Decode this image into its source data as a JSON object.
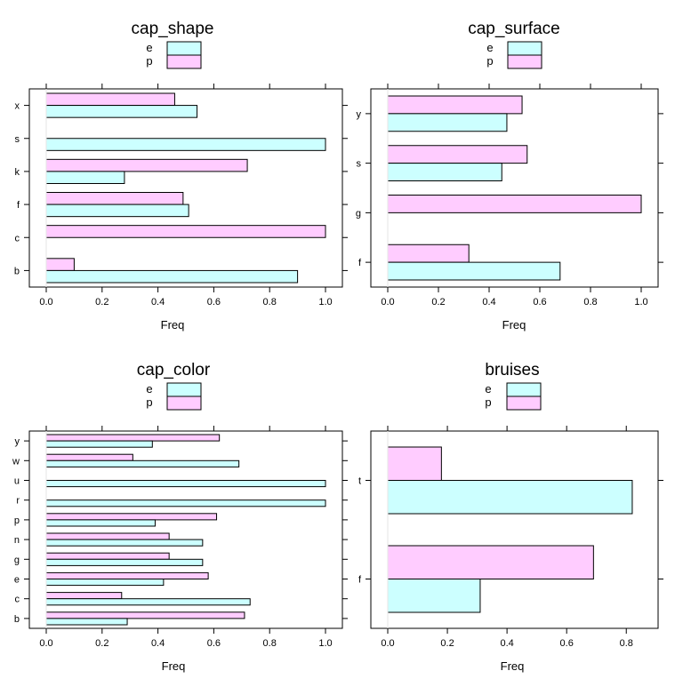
{
  "colors": {
    "e": "#ccffff",
    "p": "#ffccff",
    "stroke": "#000000"
  },
  "legend": {
    "entries": [
      "e",
      "p"
    ]
  },
  "chart_data": [
    {
      "type": "bar",
      "orientation": "horizontal",
      "title": "cap_shape",
      "xlabel": "Freq",
      "xlim": [
        0,
        1.0
      ],
      "xticks": [
        "0.0",
        "0.2",
        "0.4",
        "0.6",
        "0.8",
        "1.0"
      ],
      "categories": [
        "b",
        "c",
        "f",
        "k",
        "s",
        "x"
      ],
      "series": [
        {
          "name": "e",
          "values": [
            0.9,
            0.0,
            0.51,
            0.28,
            1.0,
            0.54
          ]
        },
        {
          "name": "p",
          "values": [
            0.1,
            1.0,
            0.49,
            0.72,
            0.0,
            0.46
          ]
        }
      ]
    },
    {
      "type": "bar",
      "orientation": "horizontal",
      "title": "cap_surface",
      "xlabel": "Freq",
      "xlim": [
        0,
        1.0
      ],
      "xticks": [
        "0.0",
        "0.2",
        "0.4",
        "0.6",
        "0.8",
        "1.0"
      ],
      "categories": [
        "f",
        "g",
        "s",
        "y"
      ],
      "series": [
        {
          "name": "e",
          "values": [
            0.68,
            0.0,
            0.45,
            0.47
          ]
        },
        {
          "name": "p",
          "values": [
            0.32,
            1.0,
            0.55,
            0.53
          ]
        }
      ]
    },
    {
      "type": "bar",
      "orientation": "horizontal",
      "title": "cap_color",
      "xlabel": "Freq",
      "xlim": [
        0,
        1.0
      ],
      "xticks": [
        "0.0",
        "0.2",
        "0.4",
        "0.6",
        "0.8",
        "1.0"
      ],
      "categories": [
        "b",
        "c",
        "e",
        "g",
        "n",
        "p",
        "r",
        "u",
        "w",
        "y"
      ],
      "series": [
        {
          "name": "e",
          "values": [
            0.29,
            0.73,
            0.42,
            0.56,
            0.56,
            0.39,
            1.0,
            1.0,
            0.69,
            0.38
          ]
        },
        {
          "name": "p",
          "values": [
            0.71,
            0.27,
            0.58,
            0.44,
            0.44,
            0.61,
            0.0,
            0.0,
            0.31,
            0.62
          ]
        }
      ]
    },
    {
      "type": "bar",
      "orientation": "horizontal",
      "title": "bruises",
      "xlabel": "Freq",
      "xlim": [
        0,
        0.85
      ],
      "xticks": [
        "0.0",
        "0.2",
        "0.4",
        "0.6",
        "0.8"
      ],
      "categories": [
        "f",
        "t"
      ],
      "series": [
        {
          "name": "e",
          "values": [
            0.31,
            0.82
          ]
        },
        {
          "name": "p",
          "values": [
            0.69,
            0.18
          ]
        }
      ]
    }
  ]
}
